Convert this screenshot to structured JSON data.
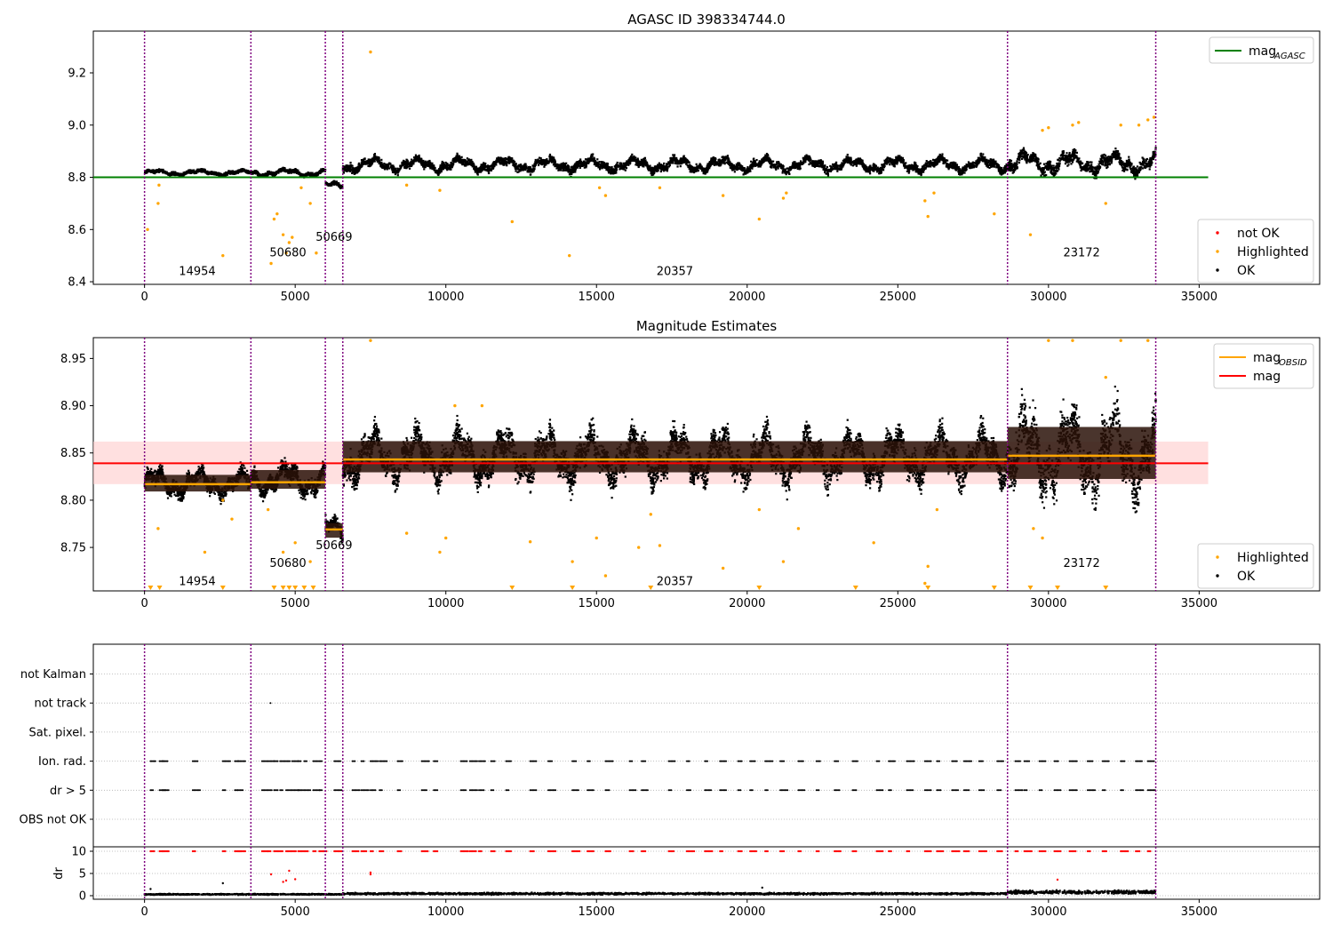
{
  "colors": {
    "ok": "#000000",
    "highlighted": "#ffa500",
    "not_ok": "#ff0000",
    "mag_agasc": "#008000",
    "mag": "#ff0000",
    "mag_obsid": "#ffa500",
    "mag_band": "#ffcccc",
    "obsid_boundary": "#800080",
    "grid": "#b0b0b0"
  },
  "obsid_boundaries": [
    0,
    3530,
    6000,
    6580,
    28640,
    33560
  ],
  "chart_data": [
    {
      "id": "agasc",
      "type": "scatter",
      "title": "AGASC ID 398334744.0",
      "xlim": [
        -1700,
        39000
      ],
      "ylim": [
        8.39,
        9.36
      ],
      "xticks": [
        0,
        5000,
        10000,
        15000,
        20000,
        25000,
        30000,
        35000
      ],
      "yticks": [
        8.4,
        8.6,
        8.8,
        9.0,
        9.2
      ],
      "ytick_labels": [
        "8.4",
        "8.6",
        "8.8",
        "9.0",
        "9.2"
      ],
      "hlines": [
        {
          "name": "mag_AGASC",
          "y": 8.8,
          "x": [
            -1700,
            35300
          ],
          "color": "#008000"
        }
      ],
      "obsids": [
        {
          "label": "14954",
          "x": 1750,
          "y": 8.44
        },
        {
          "label": "50680",
          "x": 4760,
          "y": 8.51
        },
        {
          "label": "50669",
          "x": 6290,
          "y": 8.57
        },
        {
          "label": "20357",
          "x": 17600,
          "y": 8.44
        },
        {
          "label": "23172",
          "x": 31100,
          "y": 8.51
        }
      ],
      "series": [
        {
          "name": "OK",
          "kind": "band",
          "color": "#000000",
          "segments": [
            {
              "x0": 0,
              "x1": 3530,
              "center": 8.818,
              "amp": 0.012
            },
            {
              "x0": 3530,
              "x1": 6000,
              "center": 8.818,
              "amp": 0.015
            },
            {
              "x0": 6000,
              "x1": 6580,
              "center": 8.768,
              "amp": 0.015
            },
            {
              "x0": 6580,
              "x1": 28640,
              "center": 8.848,
              "amp": 0.03
            },
            {
              "x0": 28640,
              "x1": 33560,
              "center": 8.855,
              "amp": 0.045
            }
          ]
        },
        {
          "name": "Highlighted",
          "kind": "points",
          "color": "#ffa500",
          "points": [
            [
              100,
              8.6
            ],
            [
              450,
              8.7
            ],
            [
              480,
              8.77
            ],
            [
              2600,
              8.5
            ],
            [
              4200,
              8.47
            ],
            [
              4300,
              8.64
            ],
            [
              4400,
              8.66
            ],
            [
              4600,
              8.58
            ],
            [
              4700,
              8.51
            ],
            [
              4800,
              8.55
            ],
            [
              4900,
              8.57
            ],
            [
              5200,
              8.76
            ],
            [
              5500,
              8.7
            ],
            [
              5700,
              8.51
            ],
            [
              7500,
              9.28
            ],
            [
              8700,
              8.77
            ],
            [
              9800,
              8.75
            ],
            [
              12200,
              8.63
            ],
            [
              14100,
              8.5
            ],
            [
              15100,
              8.76
            ],
            [
              15300,
              8.73
            ],
            [
              17100,
              8.76
            ],
            [
              19200,
              8.73
            ],
            [
              20400,
              8.64
            ],
            [
              21200,
              8.72
            ],
            [
              21300,
              8.74
            ],
            [
              25900,
              8.71
            ],
            [
              26000,
              8.65
            ],
            [
              26200,
              8.74
            ],
            [
              28200,
              8.66
            ],
            [
              29400,
              8.58
            ],
            [
              29800,
              8.98
            ],
            [
              30000,
              8.99
            ],
            [
              30800,
              9.0
            ],
            [
              31000,
              9.01
            ],
            [
              31900,
              8.7
            ],
            [
              32400,
              9.0
            ],
            [
              33000,
              9.0
            ],
            [
              33300,
              9.02
            ],
            [
              33500,
              9.03
            ]
          ]
        }
      ],
      "legend_top": [
        {
          "label": "mag",
          "sub": "AGASC",
          "color": "#008000",
          "kind": "line"
        }
      ],
      "legend_bottom": [
        {
          "label": "not OK",
          "color": "#ff0000",
          "kind": "dot"
        },
        {
          "label": "Highlighted",
          "color": "#ffa500",
          "kind": "dot"
        },
        {
          "label": "OK",
          "color": "#000000",
          "kind": "dot"
        }
      ]
    },
    {
      "id": "estimates",
      "type": "scatter",
      "title": "Magnitude Estimates",
      "xlim": [
        -1700,
        39000
      ],
      "ylim": [
        8.704,
        8.972
      ],
      "xticks": [
        0,
        5000,
        10000,
        15000,
        20000,
        25000,
        30000,
        35000
      ],
      "yticks": [
        8.75,
        8.8,
        8.85,
        8.9,
        8.95
      ],
      "ytick_labels": [
        "8.75",
        "8.80",
        "8.85",
        "8.90",
        "8.95"
      ],
      "mag_band": {
        "y0": 8.817,
        "y1": 8.862,
        "x": [
          -1700,
          35300
        ],
        "color": "#ffcccc"
      },
      "hlines": [
        {
          "name": "mag",
          "y": 8.839,
          "x": [
            -1700,
            35300
          ],
          "color": "#ff0000"
        }
      ],
      "obsid_mags": [
        {
          "x0": 0,
          "x1": 3530,
          "y": 8.817
        },
        {
          "x0": 3530,
          "x1": 6000,
          "y": 8.819
        },
        {
          "x0": 6000,
          "x1": 6580,
          "y": 8.769
        },
        {
          "x0": 6580,
          "x1": 28640,
          "y": 8.843
        },
        {
          "x0": 28640,
          "x1": 33560,
          "y": 8.847
        }
      ],
      "obsids": [
        {
          "label": "14954",
          "x": 1750,
          "y": 8.714
        },
        {
          "label": "50680",
          "x": 4760,
          "y": 8.733
        },
        {
          "label": "50669",
          "x": 6290,
          "y": 8.752
        },
        {
          "label": "20357",
          "x": 17600,
          "y": 8.714
        },
        {
          "label": "23172",
          "x": 31100,
          "y": 8.733
        }
      ],
      "series": [
        {
          "name": "OK",
          "kind": "band",
          "color": "#000000",
          "segments": [
            {
              "x0": 0,
              "x1": 3530,
              "center": 8.818,
              "amp": 0.016
            },
            {
              "x0": 3530,
              "x1": 6000,
              "center": 8.822,
              "amp": 0.018
            },
            {
              "x0": 6000,
              "x1": 6580,
              "center": 8.768,
              "amp": 0.014
            },
            {
              "x0": 6580,
              "x1": 28640,
              "center": 8.846,
              "amp": 0.03
            },
            {
              "x0": 28640,
              "x1": 33560,
              "center": 8.85,
              "amp": 0.05
            }
          ]
        },
        {
          "name": "Highlighted",
          "kind": "points",
          "color": "#ffa500",
          "points": [
            [
              450,
              8.77
            ],
            [
              2000,
              8.745
            ],
            [
              2600,
              8.8
            ],
            [
              2900,
              8.78
            ],
            [
              4100,
              8.79
            ],
            [
              4600,
              8.745
            ],
            [
              5000,
              8.755
            ],
            [
              5500,
              8.735
            ],
            [
              7500,
              8.97
            ],
            [
              8700,
              8.765
            ],
            [
              9800,
              8.745
            ],
            [
              10000,
              8.76
            ],
            [
              10300,
              8.9
            ],
            [
              11200,
              8.9
            ],
            [
              12800,
              8.756
            ],
            [
              14200,
              8.735
            ],
            [
              15000,
              8.76
            ],
            [
              15300,
              8.72
            ],
            [
              16400,
              8.75
            ],
            [
              16800,
              8.785
            ],
            [
              17100,
              8.752
            ],
            [
              19200,
              8.728
            ],
            [
              20400,
              8.79
            ],
            [
              21200,
              8.735
            ],
            [
              21700,
              8.77
            ],
            [
              24200,
              8.755
            ],
            [
              25900,
              8.712
            ],
            [
              26000,
              8.73
            ],
            [
              26300,
              8.79
            ],
            [
              29500,
              8.77
            ],
            [
              29800,
              8.76
            ],
            [
              30000,
              8.97
            ],
            [
              30800,
              8.97
            ],
            [
              31900,
              8.93
            ],
            [
              32400,
              8.97
            ],
            [
              33300,
              8.97
            ]
          ]
        }
      ],
      "legend_top": [
        {
          "label": "mag",
          "sub": "OBSID",
          "color": "#ffa500",
          "kind": "line"
        },
        {
          "label": "mag",
          "sub": "",
          "color": "#ff0000",
          "kind": "line"
        }
      ],
      "legend_bottom": [
        {
          "label": "Highlighted",
          "color": "#ffa500",
          "kind": "dot"
        },
        {
          "label": "OK",
          "color": "#000000",
          "kind": "dot"
        }
      ]
    },
    {
      "id": "flags",
      "type": "scatter",
      "xlim": [
        -1700,
        39000
      ],
      "categories": [
        "OBS not OK",
        "dr > 5",
        "Ion. rad.",
        "Sat. pixel.",
        "not track",
        "not Kalman"
      ],
      "flag_events": {
        "Ion. rad.": [
          200,
          500,
          600,
          1600,
          2600,
          3000,
          3100,
          3900,
          4100,
          4300,
          4500,
          4700,
          4900,
          5100,
          5300,
          5600,
          5800,
          6300,
          6900,
          7200,
          7500,
          7800,
          8400,
          9200,
          9600,
          10500,
          10800,
          11100,
          11500,
          12000,
          12800,
          13400,
          14200,
          14700,
          15300,
          16100,
          16500,
          17400,
          18000,
          18600,
          19100,
          19700,
          20100,
          20600,
          21100,
          21700,
          22300,
          22900,
          23500,
          24300,
          24700,
          25300,
          25900,
          26300,
          26800,
          27200,
          27700,
          28300,
          28900,
          29200,
          29700,
          30200,
          30700,
          31300,
          31800,
          32400,
          32900,
          33300
        ],
        "dr > 5": [
          200,
          500,
          600,
          1600,
          2600,
          3000,
          3100,
          3900,
          4100,
          4300,
          4500,
          4700,
          4900,
          5100,
          5300,
          5600,
          5800,
          6300,
          6900,
          7200,
          7500,
          7800,
          8400,
          9200,
          9600,
          10500,
          10800,
          11100,
          11500,
          12000,
          12800,
          13400,
          14200,
          14700,
          15300,
          16100,
          16500,
          17400,
          18000,
          18600,
          19100,
          19700,
          20100,
          20600,
          21100,
          21700,
          22300,
          22900,
          23500,
          24300,
          24700,
          25300,
          25900,
          26300,
          26800,
          27200,
          27700,
          28300,
          28900,
          29200,
          29700,
          30200,
          30700,
          31300,
          31800,
          32400,
          32900,
          33300
        ],
        "not track": [
          4180
        ]
      },
      "dr": {
        "ylabel": "dr",
        "ylim": [
          -0.8,
          11
        ],
        "yticks": [
          0,
          5,
          10
        ],
        "ytick_labels": [
          "0",
          "5",
          "10"
        ],
        "clip_value": 10,
        "outliers": [
          [
            200,
            1.5
          ],
          [
            2600,
            2.8
          ],
          [
            4200,
            4.8
          ],
          [
            4600,
            3.1
          ],
          [
            4700,
            3.4
          ],
          [
            4800,
            5.6
          ],
          [
            5000,
            3.7
          ],
          [
            7500,
            4.8
          ],
          [
            7500,
            5.2
          ],
          [
            20500,
            1.8
          ],
          [
            30300,
            3.6
          ]
        ]
      }
    }
  ]
}
